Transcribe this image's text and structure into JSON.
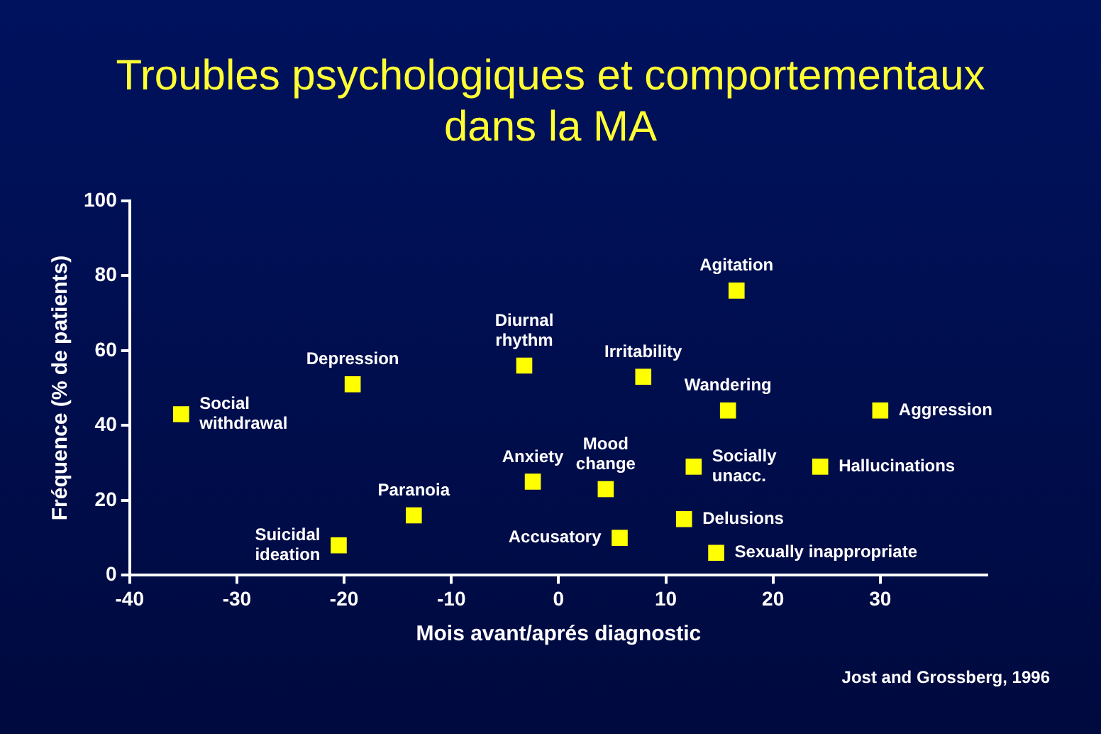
{
  "chart_data": {
    "type": "scatter",
    "title": "Troubles psychologiques et comportementaux dans la MA",
    "xlabel": "Mois avant/aprés diagnostic",
    "ylabel": "Fréquence (% de patients)",
    "x": [
      -35.2,
      -19.2,
      -20.5,
      -13.5,
      -3.2,
      -2.4,
      5.7,
      4.4,
      7.9,
      16.6,
      15.8,
      12.6,
      11.7,
      14.7,
      30,
      24.4
    ],
    "series": [
      {
        "color": "#ffff00",
        "values": [
          43,
          51,
          8,
          16,
          56,
          25,
          10,
          23,
          53,
          76,
          44,
          29,
          15,
          6,
          44,
          29
        ]
      }
    ],
    "xlim": [
      -40,
      40
    ],
    "xticks": [
      -40,
      -30,
      -20,
      -10,
      0,
      10,
      20,
      30
    ],
    "ylim": [
      0,
      100
    ],
    "yticks": [
      0,
      20,
      40,
      60,
      80,
      100
    ],
    "marker": "square",
    "grid": false,
    "legend": false,
    "annotations": [
      {
        "text": "Social withdrawal",
        "x": -35.2,
        "y": 43
      },
      {
        "text": "Depression",
        "x": -19.2,
        "y": 51
      },
      {
        "text": "Suicidal ideation",
        "x": -20.5,
        "y": 8
      },
      {
        "text": "Paranoia",
        "x": -13.5,
        "y": 16
      },
      {
        "text": "Diurnal rhythm",
        "x": -3.2,
        "y": 56
      },
      {
        "text": "Anxiety",
        "x": -2.4,
        "y": 25
      },
      {
        "text": "Accusatory",
        "x": 5.7,
        "y": 10
      },
      {
        "text": "Mood change",
        "x": 4.4,
        "y": 23
      },
      {
        "text": "Irritability",
        "x": 7.9,
        "y": 53
      },
      {
        "text": "Agitation",
        "x": 16.6,
        "y": 76
      },
      {
        "text": "Wandering",
        "x": 15.8,
        "y": 44
      },
      {
        "text": "Socially unacc.",
        "x": 12.6,
        "y": 29
      },
      {
        "text": "Delusions",
        "x": 11.7,
        "y": 15
      },
      {
        "text": "Sexually inappropriate",
        "x": 14.7,
        "y": 6
      },
      {
        "text": "Aggression",
        "x": 30,
        "y": 44
      },
      {
        "text": "Hallucinations",
        "x": 24.4,
        "y": 29
      },
      "Jost and Grossberg, 1996"
    ]
  }
}
